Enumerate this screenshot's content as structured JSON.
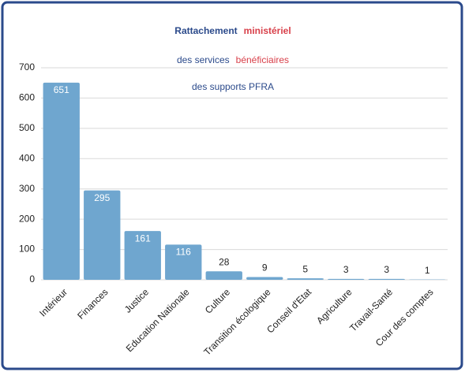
{
  "chart_data": {
    "type": "bar",
    "title_lines": [
      [
        {
          "text": "Rattachement",
          "color": "#2b4a8b"
        },
        {
          "text": "ministériel",
          "color": "#d8404a"
        }
      ],
      [
        {
          "text": "des services",
          "color": "#2b4a8b"
        },
        {
          "text": "bénéficiaires",
          "color": "#d8404a"
        }
      ],
      [
        {
          "text": "des supports PFRA",
          "color": "#2b4a8b"
        }
      ]
    ],
    "categories": [
      "Intérieur",
      "Finances",
      "Justice",
      "Education Nationale",
      "Culture",
      "Transition écologique",
      "Conseil d'Etat",
      "Agriculture",
      "Travail-Santé",
      "Cour des comptes"
    ],
    "values": [
      651,
      295,
      161,
      116,
      28,
      9,
      5,
      3,
      3,
      1
    ],
    "color": "#6fa6cf",
    "ylim": [
      0,
      700
    ],
    "yticks": [
      0,
      100,
      200,
      300,
      400,
      500,
      600,
      700
    ],
    "grid": true
  }
}
